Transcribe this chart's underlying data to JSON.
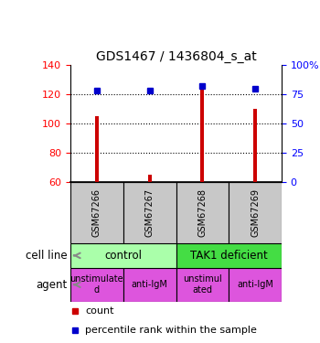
{
  "title": "GDS1467 / 1436804_s_at",
  "samples": [
    "GSM67266",
    "GSM67267",
    "GSM67268",
    "GSM67269"
  ],
  "counts": [
    105,
    65,
    125,
    110
  ],
  "percentile_ranks": [
    78,
    78,
    82,
    80
  ],
  "ylim_left": [
    60,
    140
  ],
  "ylim_right": [
    0,
    100
  ],
  "yticks_left": [
    60,
    80,
    100,
    120,
    140
  ],
  "yticks_right": [
    0,
    25,
    50,
    75,
    100
  ],
  "yticklabels_right": [
    "0",
    "25",
    "50",
    "75",
    "100%"
  ],
  "bar_color": "#cc0000",
  "dot_color": "#0000cc",
  "cell_line_labels": [
    "control",
    "TAK1 deficient"
  ],
  "cell_line_colors": [
    "#aaffaa",
    "#44dd44"
  ],
  "agent_labels": [
    "unstimulate\nd",
    "anti-IgM",
    "unstimul\nated",
    "anti-IgM"
  ],
  "agent_color": "#dd55dd",
  "sample_bg_color": "#c8c8c8",
  "x_positions": [
    0,
    1,
    2,
    3
  ],
  "legend_count_color": "#cc0000",
  "legend_pct_color": "#0000cc",
  "bar_width": 0.07
}
